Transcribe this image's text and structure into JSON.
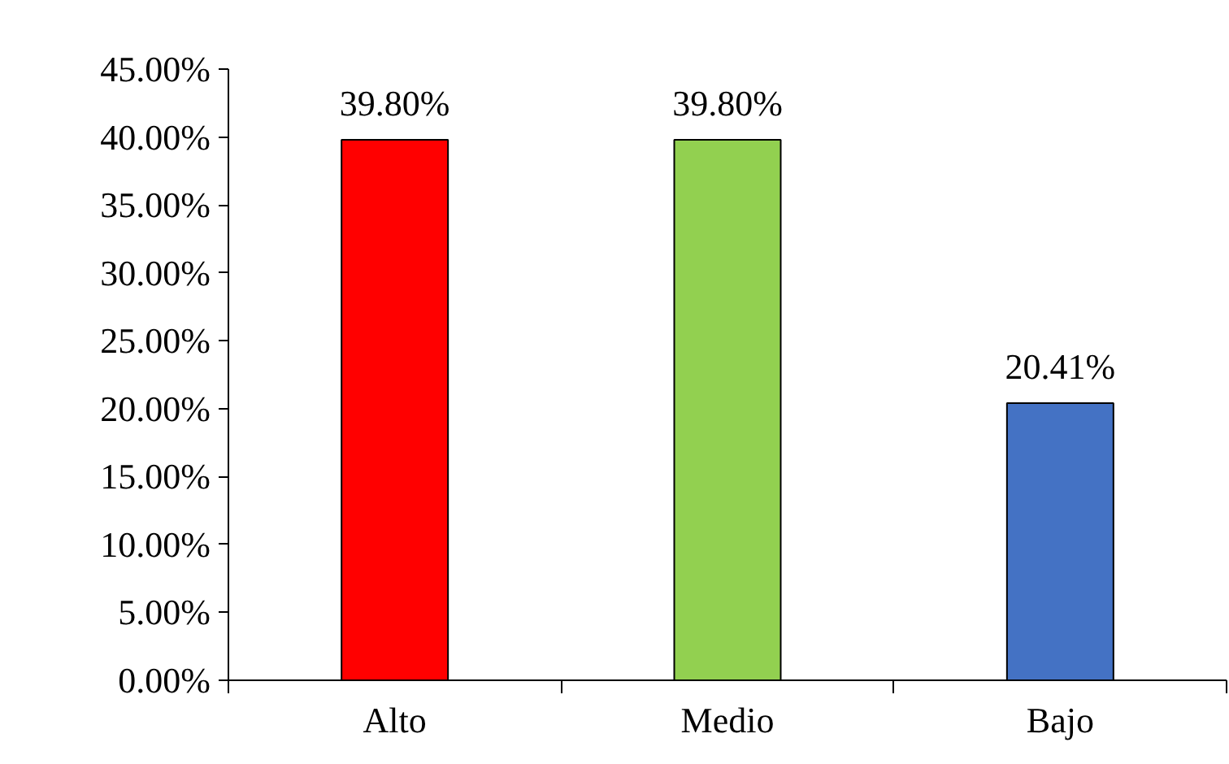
{
  "chart_data": {
    "type": "bar",
    "categories": [
      "Alto",
      "Medio",
      "Bajo"
    ],
    "colors": [
      "#ff0000",
      "#92d050",
      "#4472c4"
    ],
    "values": [
      39.8,
      39.8,
      20.41
    ],
    "value_labels": [
      "39.80%",
      "39.80%",
      "20.41%"
    ],
    "ylim": [
      0,
      45
    ],
    "yticks": [
      {
        "value": 0,
        "label": "0.00%"
      },
      {
        "value": 5,
        "label": "5.00%"
      },
      {
        "value": 10,
        "label": "10.00%"
      },
      {
        "value": 15,
        "label": "15.00%"
      },
      {
        "value": 20,
        "label": "20.00%"
      },
      {
        "value": 25,
        "label": "25.00%"
      },
      {
        "value": 30,
        "label": "30.00%"
      },
      {
        "value": 35,
        "label": "35.00%"
      },
      {
        "value": 40,
        "label": "40.00%"
      },
      {
        "value": 45,
        "label": "45.00%"
      }
    ],
    "ylabel": null
  }
}
